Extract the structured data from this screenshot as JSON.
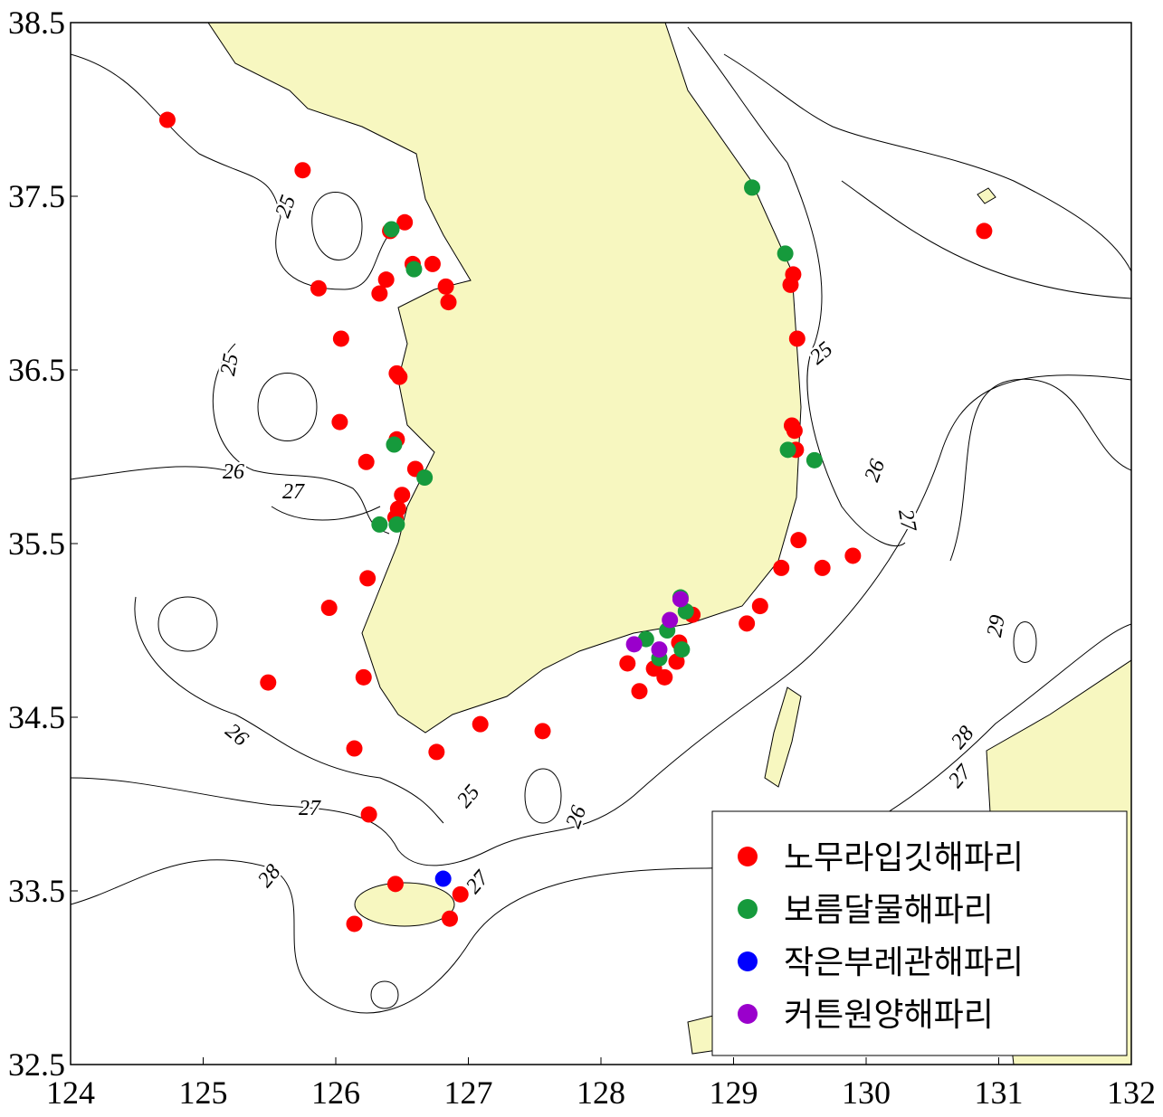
{
  "chart_data": {
    "type": "scatter",
    "xlim": [
      124,
      132
    ],
    "ylim": [
      32.5,
      38.5
    ],
    "xticks": [
      124,
      125,
      126,
      127,
      128,
      129,
      130,
      131,
      132
    ],
    "yticks": [
      32.5,
      33.5,
      34.5,
      35.5,
      36.5,
      37.5,
      38.5
    ],
    "legend": "lower right",
    "contour_labels": [
      "25",
      "25",
      "25",
      "25",
      "26",
      "26",
      "26",
      "26",
      "27",
      "27",
      "27",
      "27",
      "27",
      "28",
      "28",
      "29"
    ],
    "series": [
      {
        "name": "노무라입깃해파리",
        "color": "#ff0000",
        "x": [
          124.73,
          125.75,
          126.52,
          126.41,
          126.58,
          126.73,
          126.38,
          125.87,
          126.33,
          126.83,
          126.85,
          126.04,
          126.46,
          126.48,
          126.03,
          126.23,
          126.46,
          126.6,
          126.5,
          126.47,
          126.45,
          126.24,
          125.95,
          125.49,
          126.21,
          126.14,
          126.76,
          127.09,
          127.56,
          126.25,
          126.45,
          126.94,
          126.86,
          126.14,
          130.89,
          129.45,
          129.43,
          129.48,
          129.44,
          129.46,
          129.47,
          129.49,
          129.36,
          129.67,
          129.9,
          129.2,
          129.1,
          128.69,
          128.59,
          128.2,
          128.4,
          128.48,
          128.57,
          128.29
        ],
        "y": [
          37.94,
          37.65,
          37.35,
          37.3,
          37.11,
          37.11,
          37.02,
          36.97,
          36.94,
          36.98,
          36.89,
          36.68,
          36.48,
          36.46,
          36.2,
          35.97,
          36.1,
          35.93,
          35.78,
          35.7,
          35.65,
          35.3,
          35.13,
          34.7,
          34.73,
          34.32,
          34.3,
          34.46,
          34.42,
          33.94,
          33.54,
          33.48,
          33.34,
          33.31,
          37.3,
          37.05,
          36.99,
          36.68,
          36.18,
          36.15,
          36.04,
          35.52,
          35.36,
          35.36,
          35.43,
          35.14,
          35.04,
          35.09,
          34.93,
          34.81,
          34.78,
          34.73,
          34.82,
          34.65
        ]
      },
      {
        "name": "보름달물해파리",
        "color": "#169a3c",
        "x": [
          129.14,
          129.39,
          129.41,
          129.61,
          126.42,
          126.59,
          126.44,
          126.67,
          126.33,
          126.46,
          128.34,
          128.5,
          128.61,
          128.44,
          128.6,
          128.64
        ],
        "y": [
          37.55,
          37.17,
          36.04,
          35.98,
          37.31,
          37.08,
          36.07,
          35.88,
          35.61,
          35.61,
          34.95,
          35.0,
          34.89,
          34.84,
          35.19,
          35.11
        ]
      },
      {
        "name": "작은부레관해파리",
        "color": "#0000ff",
        "x": [
          126.81
        ],
        "y": [
          33.57
        ]
      },
      {
        "name": "커튼원양해파리",
        "color": "#9a00cc",
        "x": [
          128.25,
          128.44,
          128.52,
          128.6
        ],
        "y": [
          34.92,
          34.89,
          35.06,
          35.18
        ]
      }
    ]
  }
}
